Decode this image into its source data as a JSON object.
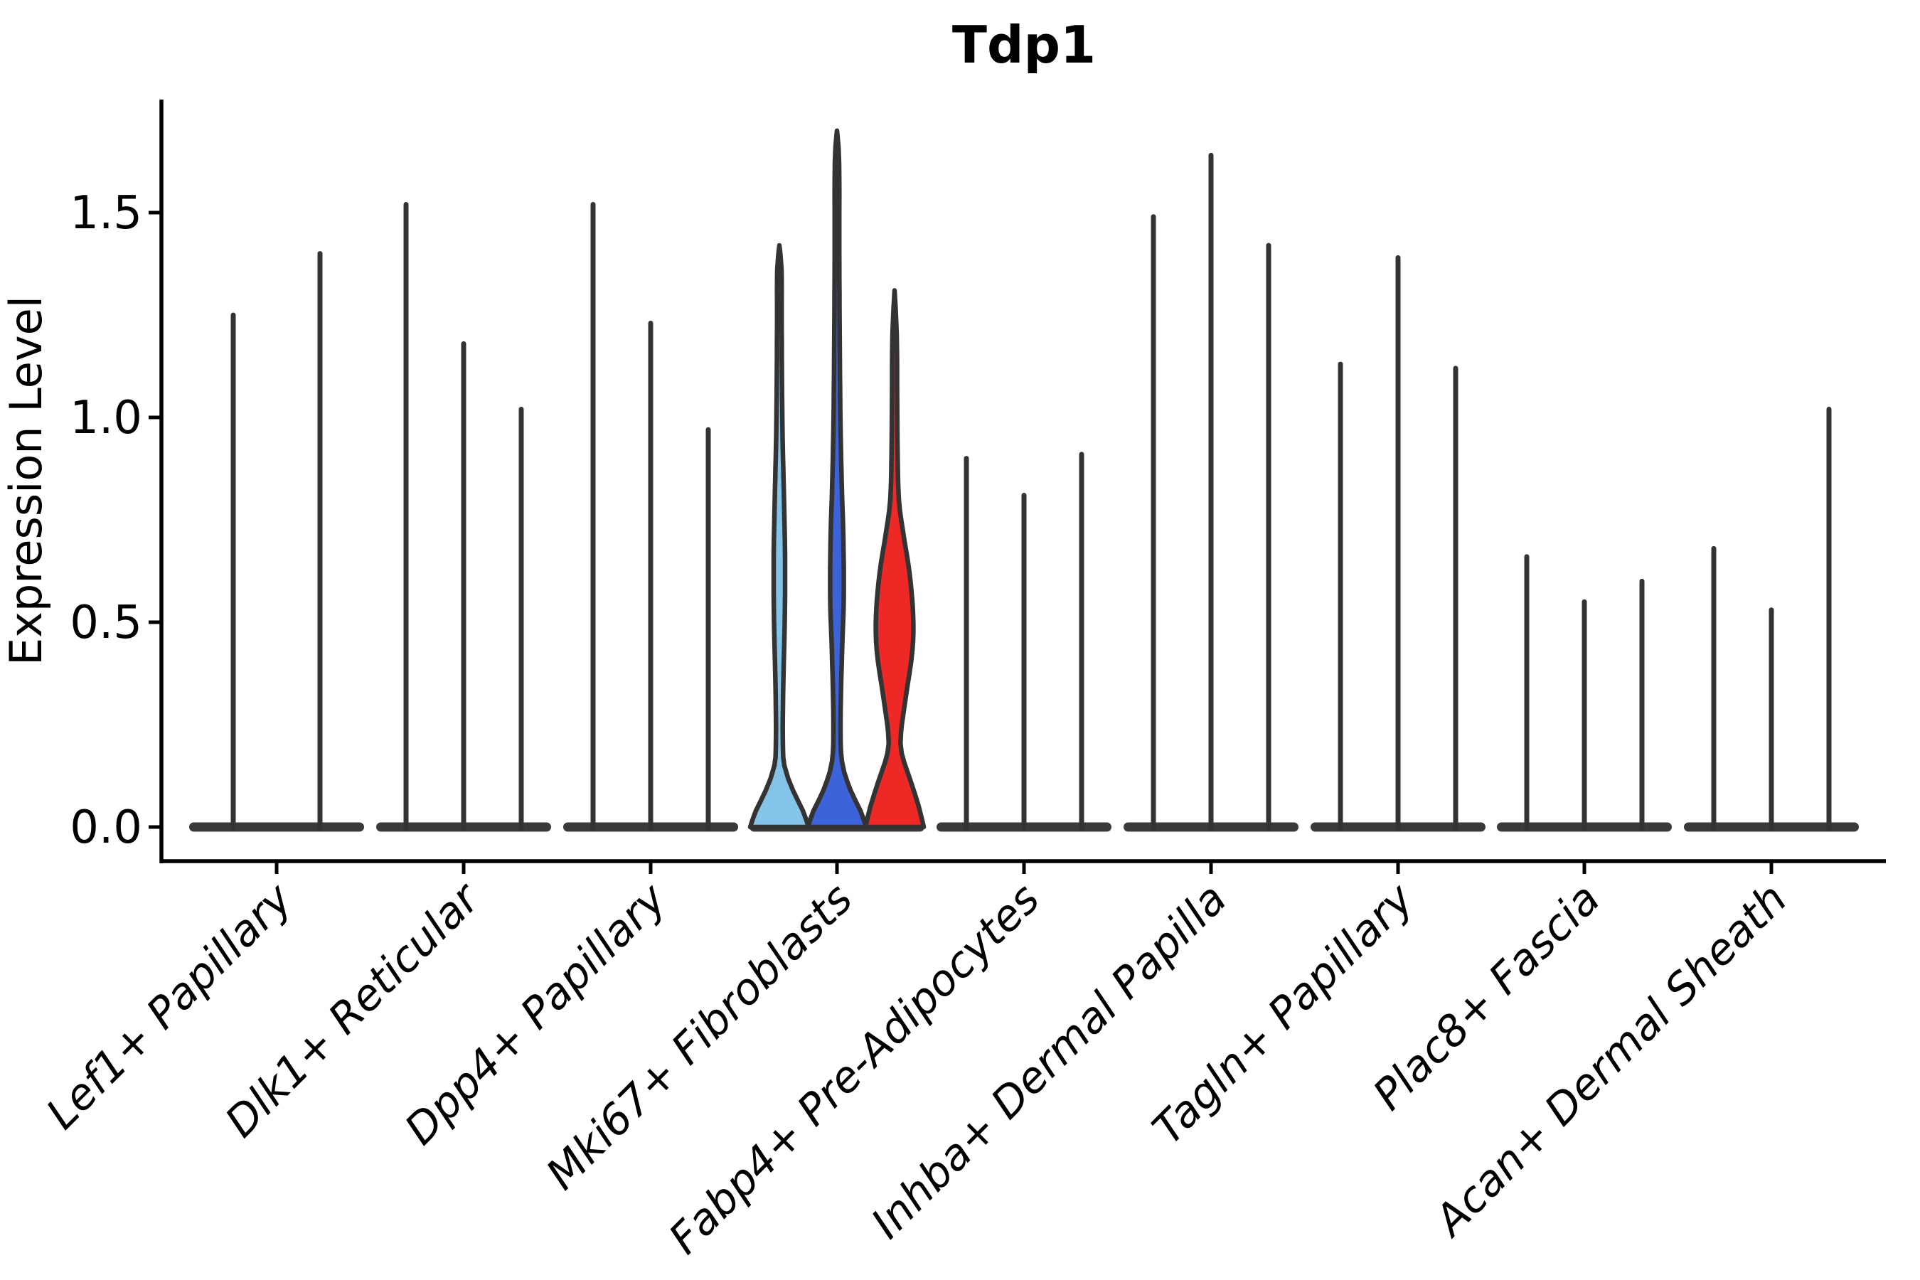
{
  "chart_data": {
    "type": "violin",
    "title": "Tdp1",
    "ylabel": "Expression Level",
    "xlabel": "",
    "yticks": [
      "0.0",
      "0.5",
      "1.0",
      "1.5"
    ],
    "ytick_values": [
      0.0,
      0.5,
      1.0,
      1.5
    ],
    "ylim": [
      -0.09,
      1.79
    ],
    "grid": false,
    "legend": null,
    "background": "#ffffff",
    "axis_color": "#000000",
    "outline_color": "#333333",
    "baseline_color": "#3a3a3a",
    "categories": [
      "Lef1+ Papillary",
      "Dlk1+ Reticular",
      "Dpp4+ Papillary",
      "Mki67+ Fibroblasts",
      "Fabp4+ Pre-Adipocytes",
      "Inhba+ Dermal Papilla",
      "Tagln+ Papillary",
      "Plac8+ Fascia",
      "Acan+ Dermal Sheath"
    ],
    "groups": [
      {
        "category": "Lef1+ Papillary",
        "violins": [
          {
            "max": 1.25,
            "fill": "#ffffff"
          },
          {
            "max": 1.4,
            "fill": "#ffffff"
          }
        ]
      },
      {
        "category": "Dlk1+ Reticular",
        "violins": [
          {
            "max": 1.52,
            "fill": "#ffffff"
          },
          {
            "max": 1.18,
            "fill": "#ffffff"
          },
          {
            "max": 1.02,
            "fill": "#ffffff"
          }
        ]
      },
      {
        "category": "Dpp4+ Papillary",
        "violins": [
          {
            "max": 1.52,
            "fill": "#ffffff"
          },
          {
            "max": 1.23,
            "fill": "#ffffff"
          },
          {
            "max": 0.97,
            "fill": "#ffffff"
          }
        ]
      },
      {
        "category": "Mki67+ Fibroblasts",
        "violins": [
          {
            "max": 1.42,
            "fill": "#85C4E9",
            "profile": [
              [
                0,
                41
              ],
              [
                0.04,
                33
              ],
              [
                0.09,
                19
              ],
              [
                0.15,
                7
              ],
              [
                0.22,
                4.8
              ],
              [
                0.35,
                5.5
              ],
              [
                0.5,
                7.5
              ],
              [
                0.65,
                8
              ],
              [
                0.8,
                6.5
              ],
              [
                0.95,
                4.5
              ],
              [
                1.1,
                3.6
              ],
              [
                1.25,
                3.2
              ],
              [
                1.36,
                3
              ],
              [
                1.42,
                0
              ]
            ]
          },
          {
            "max": 1.7,
            "fill": "#3C63D9",
            "profile": [
              [
                0,
                41
              ],
              [
                0.04,
                33
              ],
              [
                0.09,
                19
              ],
              [
                0.16,
                7
              ],
              [
                0.26,
                5
              ],
              [
                0.42,
                7
              ],
              [
                0.56,
                9.5
              ],
              [
                0.7,
                9
              ],
              [
                0.85,
                6.5
              ],
              [
                1.0,
                4.8
              ],
              [
                1.2,
                3.8
              ],
              [
                1.4,
                3.2
              ],
              [
                1.62,
                3
              ],
              [
                1.7,
                0
              ]
            ]
          },
          {
            "max": 1.31,
            "fill": "#EE2824",
            "profile": [
              [
                0,
                41
              ],
              [
                0.05,
                34
              ],
              [
                0.11,
                23
              ],
              [
                0.18,
                10
              ],
              [
                0.23,
                9
              ],
              [
                0.32,
                16
              ],
              [
                0.43,
                25
              ],
              [
                0.52,
                26
              ],
              [
                0.62,
                21
              ],
              [
                0.72,
                12
              ],
              [
                0.8,
                6
              ],
              [
                0.92,
                4.2
              ],
              [
                1.05,
                3.6
              ],
              [
                1.2,
                3
              ],
              [
                1.31,
                0
              ]
            ]
          }
        ]
      },
      {
        "category": "Fabp4+ Pre-Adipocytes",
        "violins": [
          {
            "max": 0.9,
            "fill": "#ffffff"
          },
          {
            "max": 0.81,
            "fill": "#ffffff"
          },
          {
            "max": 0.91,
            "fill": "#ffffff"
          }
        ]
      },
      {
        "category": "Inhba+ Dermal Papilla",
        "violins": [
          {
            "max": 1.49,
            "fill": "#ffffff"
          },
          {
            "max": 1.64,
            "fill": "#ffffff"
          },
          {
            "max": 1.42,
            "fill": "#ffffff"
          }
        ]
      },
      {
        "category": "Tagln+ Papillary",
        "violins": [
          {
            "max": 1.13,
            "fill": "#ffffff"
          },
          {
            "max": 1.39,
            "fill": "#ffffff"
          },
          {
            "max": 1.12,
            "fill": "#ffffff"
          }
        ]
      },
      {
        "category": "Plac8+ Fascia",
        "violins": [
          {
            "max": 0.66,
            "fill": "#ffffff"
          },
          {
            "max": 0.55,
            "fill": "#ffffff"
          },
          {
            "max": 0.6,
            "fill": "#ffffff"
          }
        ]
      },
      {
        "category": "Acan+ Dermal Sheath",
        "violins": [
          {
            "max": 0.68,
            "fill": "#ffffff"
          },
          {
            "max": 0.53,
            "fill": "#ffffff"
          },
          {
            "max": 1.02,
            "fill": "#ffffff"
          }
        ]
      }
    ]
  }
}
